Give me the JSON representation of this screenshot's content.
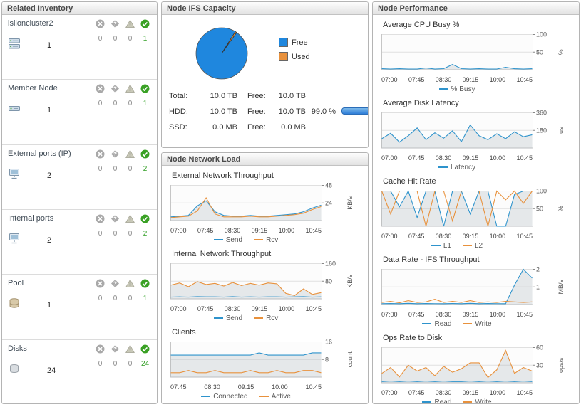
{
  "colors": {
    "series_blue": "#2e93cc",
    "series_orange": "#e8913c",
    "ok_green": "#2f9e22",
    "bar_blue": "#2f7ed8"
  },
  "inventory": {
    "title": "Related Inventory",
    "rows": [
      {
        "label": "isiloncluster2",
        "icon": "cluster",
        "count": "1",
        "counts": [
          "0",
          "0",
          "0",
          "1"
        ]
      },
      {
        "label": "Member Node",
        "icon": "node",
        "count": "1",
        "counts": [
          "0",
          "0",
          "0",
          "1"
        ]
      },
      {
        "label": "External ports (IP)",
        "icon": "port",
        "count": "2",
        "counts": [
          "0",
          "0",
          "0",
          "2"
        ]
      },
      {
        "label": "Internal ports",
        "icon": "port",
        "count": "2",
        "counts": [
          "0",
          "0",
          "0",
          "2"
        ]
      },
      {
        "label": "Pool",
        "icon": "pool",
        "count": "1",
        "counts": [
          "0",
          "0",
          "0",
          "1"
        ]
      },
      {
        "label": "Disks",
        "icon": "disk",
        "count": "24",
        "counts": [
          "0",
          "0",
          "0",
          "24"
        ]
      }
    ]
  },
  "capacity": {
    "title": "Node IFS Capacity",
    "rows": [
      {
        "label": "Total:",
        "value": "10.0 TB",
        "free_label": "Free:",
        "free": "10.0 TB",
        "pct": ""
      },
      {
        "label": "HDD:",
        "value": "10.0 TB",
        "free_label": "Free:",
        "free": "10.0 TB",
        "pct": "99.0 %"
      },
      {
        "label": "SSD:",
        "value": "0.0 MB",
        "free_label": "Free:",
        "free": "0.0 MB",
        "pct": ""
      }
    ]
  },
  "network": {
    "title": "Node Network Load"
  },
  "performance": {
    "title": "Node Performance"
  },
  "chart_data": [
    {
      "type": "pie",
      "title": "",
      "labels": [
        "Free",
        "Used"
      ],
      "values": [
        99.0,
        1.0
      ],
      "colors": [
        "#1f87de",
        "#e8913c"
      ]
    },
    {
      "type": "line",
      "title": "External Network Throughput",
      "unit": "KB/s",
      "ylim": [
        0,
        48
      ],
      "yticks": [
        24,
        48
      ],
      "fill": 0,
      "xlabels": [
        "07:00",
        "07:45",
        "08:30",
        "09:15",
        "10:00",
        "10:45"
      ],
      "series": [
        {
          "name": "Send",
          "color": "#2e93cc",
          "values": [
            5,
            6,
            7,
            20,
            27,
            12,
            7,
            6,
            6,
            7,
            6,
            6,
            7,
            8,
            9,
            12,
            17,
            21
          ]
        },
        {
          "name": "Rcv",
          "color": "#e8913c",
          "values": [
            4,
            5,
            6,
            13,
            31,
            9,
            5,
            5,
            5,
            6,
            5,
            5,
            6,
            7,
            8,
            10,
            15,
            19
          ]
        }
      ]
    },
    {
      "type": "line",
      "title": "Internal Network Throughput",
      "unit": "KB/s",
      "ylim": [
        0,
        160
      ],
      "yticks": [
        80,
        160
      ],
      "fill": 1,
      "xlabels": [
        "07:00",
        "07:45",
        "08:30",
        "09:15",
        "10:00",
        "10:45"
      ],
      "series": [
        {
          "name": "Send",
          "color": "#2e93cc",
          "values": [
            8,
            9,
            8,
            10,
            9,
            9,
            8,
            10,
            8,
            9,
            8,
            9,
            9,
            8,
            9,
            10,
            8,
            9
          ]
        },
        {
          "name": "Rcv",
          "color": "#e8913c",
          "values": [
            62,
            72,
            55,
            78,
            65,
            70,
            58,
            74,
            60,
            70,
            62,
            72,
            68,
            25,
            15,
            45,
            20,
            28
          ]
        }
      ]
    },
    {
      "type": "line",
      "title": "Clients",
      "unit": "count",
      "ylim": [
        0,
        16
      ],
      "yticks": [
        8,
        16
      ],
      "fill": 0,
      "xlabels": [
        "07:45",
        "08:30",
        "09:15",
        "10:00",
        "10:45"
      ],
      "series": [
        {
          "name": "Connected",
          "color": "#2e93cc",
          "values": [
            10,
            10,
            10,
            10,
            10,
            10,
            10,
            10,
            10,
            10,
            11,
            10,
            10,
            10,
            10,
            10,
            11,
            11
          ]
        },
        {
          "name": "Active",
          "color": "#e8913c",
          "values": [
            2,
            2,
            3,
            2,
            2,
            3,
            2,
            2,
            2,
            3,
            2,
            2,
            3,
            2,
            2,
            3,
            3,
            2
          ]
        }
      ]
    },
    {
      "type": "line",
      "title": "Average CPU Busy %",
      "unit": "%",
      "ylim": [
        0,
        100
      ],
      "yticks": [
        50,
        100
      ],
      "fill": 0,
      "xlabels": [
        "07:00",
        "07:45",
        "08:30",
        "09:15",
        "10:00",
        "10:45"
      ],
      "series": [
        {
          "name": "% Busy",
          "color": "#2e93cc",
          "values": [
            3,
            2,
            3,
            2,
            2,
            5,
            2,
            3,
            15,
            3,
            2,
            3,
            2,
            2,
            7,
            3,
            2,
            3
          ]
        }
      ]
    },
    {
      "type": "line",
      "title": "Average Disk Latency",
      "unit": "us",
      "ylim": [
        0,
        360
      ],
      "yticks": [
        180,
        360
      ],
      "fill": 0,
      "xlabels": [
        "07:00",
        "07:45",
        "08:30",
        "09:15",
        "10:00",
        "10:45"
      ],
      "series": [
        {
          "name": "Latency",
          "color": "#2e93cc",
          "values": [
            95,
            150,
            60,
            125,
            205,
            85,
            155,
            100,
            175,
            65,
            235,
            125,
            85,
            145,
            95,
            165,
            115,
            135
          ]
        }
      ]
    },
    {
      "type": "line",
      "title": "Cache Hit Rate",
      "unit": "%",
      "ylim": [
        0,
        100
      ],
      "yticks": [
        50,
        100
      ],
      "fill": 0,
      "xlabels": [
        "07:00",
        "07:45",
        "08:30",
        "09:15",
        "10:00",
        "10:45"
      ],
      "series": [
        {
          "name": "L1",
          "color": "#2e93cc",
          "values": [
            100,
            100,
            55,
            100,
            25,
            100,
            100,
            0,
            100,
            100,
            35,
            100,
            100,
            0,
            0,
            90,
            100,
            100
          ]
        },
        {
          "name": "L2",
          "color": "#e8913c",
          "values": [
            100,
            35,
            100,
            100,
            100,
            0,
            100,
            100,
            15,
            100,
            100,
            100,
            0,
            100,
            75,
            100,
            65,
            100
          ]
        }
      ]
    },
    {
      "type": "line",
      "title": "Data Rate - IFS Throughput",
      "unit": "MB/s",
      "ylim": [
        0,
        2
      ],
      "yticks": [
        1,
        2
      ],
      "fill": 0,
      "xlabels": [
        "07:00",
        "07:45",
        "08:30",
        "09:15",
        "10:00",
        "10:45"
      ],
      "series": [
        {
          "name": "Read",
          "color": "#2e93cc",
          "values": [
            0.05,
            0.06,
            0.05,
            0.07,
            0.05,
            0.06,
            0.05,
            0.05,
            0.06,
            0.05,
            0.07,
            0.05,
            0.06,
            0.05,
            0.05,
            1.1,
            2.0,
            1.5
          ]
        },
        {
          "name": "Write",
          "color": "#e8913c",
          "values": [
            0.12,
            0.18,
            0.1,
            0.22,
            0.12,
            0.15,
            0.3,
            0.12,
            0.18,
            0.12,
            0.22,
            0.12,
            0.15,
            0.12,
            0.18,
            0.15,
            0.12,
            0.15
          ]
        }
      ]
    },
    {
      "type": "line",
      "title": "Ops Rate to Disk",
      "unit": "ops/s",
      "ylim": [
        0,
        60
      ],
      "yticks": [
        30,
        60
      ],
      "fill": 1,
      "xlabels": [
        "07:00",
        "07:45",
        "08:30",
        "09:15",
        "10:00",
        "10:45"
      ],
      "series": [
        {
          "name": "Read",
          "color": "#2e93cc",
          "values": [
            2,
            3,
            2,
            3,
            2,
            3,
            2,
            3,
            2,
            2,
            3,
            2,
            3,
            2,
            3,
            2,
            3,
            2
          ]
        },
        {
          "name": "Write",
          "color": "#e8913c",
          "values": [
            16,
            26,
            10,
            30,
            20,
            26,
            12,
            28,
            18,
            24,
            34,
            34,
            9,
            22,
            55,
            16,
            26,
            20
          ]
        }
      ]
    }
  ]
}
